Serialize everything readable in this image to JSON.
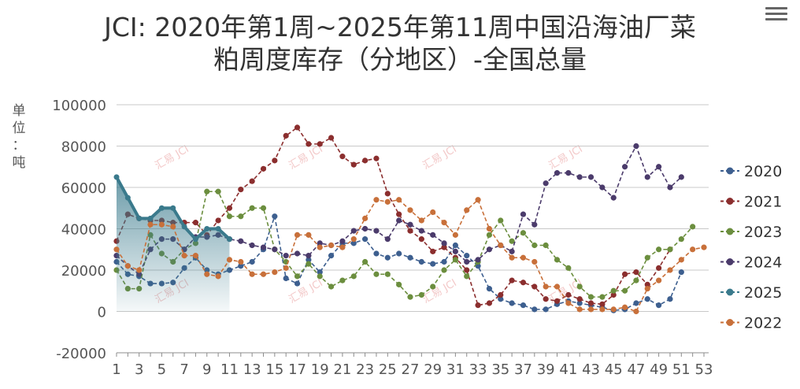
{
  "title_line1": "JCI: 2020年第1周~2025年第11周中国沿海油厂菜",
  "title_line2": "粕周度库存（分地区）-全国总量",
  "unit_label": [
    "单",
    "位",
    "：",
    "吨"
  ],
  "watermark_text": "汇易 JCI",
  "chart_data": {
    "type": "line",
    "title": "JCI: 2020年第1周~2025年第11周中国沿海油厂菜粕周度库存（分地区）-全国总量",
    "ylabel": "单位：吨",
    "xlabel": "",
    "ylim": [
      -20000,
      100000
    ],
    "yticks": [
      -20000,
      0,
      20000,
      40000,
      60000,
      80000,
      100000
    ],
    "x": [
      1,
      2,
      3,
      4,
      5,
      6,
      7,
      8,
      9,
      10,
      11,
      12,
      13,
      14,
      15,
      16,
      17,
      18,
      19,
      20,
      21,
      22,
      23,
      24,
      25,
      26,
      27,
      28,
      29,
      30,
      31,
      32,
      33,
      34,
      35,
      36,
      37,
      38,
      39,
      40,
      41,
      42,
      43,
      44,
      45,
      46,
      47,
      48,
      49,
      50,
      51,
      52,
      53
    ],
    "xticks": [
      1,
      3,
      5,
      7,
      9,
      11,
      13,
      15,
      17,
      19,
      21,
      23,
      25,
      27,
      29,
      31,
      33,
      35,
      37,
      39,
      41,
      43,
      45,
      47,
      49,
      51,
      53
    ],
    "grid": true,
    "legend_position": "right",
    "series": [
      {
        "name": "2020",
        "color": "#3d5f8f",
        "values": [
          24000,
          18000,
          17000,
          13500,
          13500,
          14000,
          21000,
          26000,
          20000,
          18000,
          20000,
          22000,
          24000,
          30000,
          46000,
          16000,
          13500,
          25000,
          19000,
          27000,
          33000,
          33000,
          35000,
          28000,
          26000,
          28000,
          26000,
          24000,
          23000,
          24000,
          32000,
          27000,
          22000,
          11000,
          6000,
          4000,
          3000,
          1000,
          1000,
          3500,
          5000,
          4000,
          3000,
          2000,
          500,
          1000,
          4000,
          6000,
          3000,
          6000,
          19000,
          null,
          null
        ]
      },
      {
        "name": "2021",
        "color": "#8b2e2e",
        "values": [
          34000,
          47000,
          45000,
          44000,
          44000,
          43000,
          43000,
          43000,
          37000,
          44000,
          50000,
          59000,
          63000,
          69000,
          73000,
          85000,
          89000,
          81000,
          81000,
          84000,
          75000,
          71000,
          73000,
          74000,
          57000,
          47000,
          39000,
          35000,
          29000,
          31000,
          26000,
          20000,
          3000,
          4000,
          8000,
          15000,
          14000,
          12000,
          6000,
          5000,
          8000,
          6000,
          4000,
          3500,
          8000,
          18000,
          19000,
          13000,
          21000,
          30000,
          null,
          null,
          null
        ]
      },
      {
        "name": "2023",
        "color": "#6b8e3e",
        "values": [
          20000,
          11000,
          11000,
          37000,
          28000,
          24000,
          30000,
          33000,
          58000,
          58000,
          46000,
          46000,
          50000,
          50000,
          30000,
          24000,
          17000,
          23000,
          17000,
          12000,
          15000,
          17000,
          24000,
          18000,
          18000,
          13000,
          7000,
          8000,
          12000,
          20000,
          25000,
          17000,
          24000,
          37000,
          44000,
          34000,
          38000,
          32000,
          32000,
          25000,
          21000,
          12000,
          7000,
          7000,
          10000,
          10000,
          15000,
          26000,
          30000,
          30000,
          35000,
          41000,
          null
        ]
      },
      {
        "name": "2024",
        "color": "#4b3b6b",
        "values": [
          27000,
          22000,
          18000,
          30000,
          35000,
          35000,
          30000,
          36000,
          36000,
          37000,
          35000,
          34000,
          32000,
          31000,
          30000,
          27000,
          28000,
          27000,
          33000,
          32000,
          34000,
          39000,
          40000,
          39000,
          35000,
          44000,
          42000,
          39000,
          37000,
          33000,
          29000,
          24000,
          25000,
          30000,
          32000,
          29000,
          47000,
          42000,
          62000,
          67000,
          67000,
          65000,
          65000,
          60000,
          55000,
          70000,
          80000,
          65000,
          70000,
          60000,
          65000,
          null,
          null
        ]
      },
      {
        "name": "2025",
        "color": "#3a7a8c",
        "values": [
          65000,
          55000,
          45000,
          45000,
          50000,
          50000,
          41000,
          35000,
          40000,
          40000,
          35000,
          null,
          null,
          null,
          null,
          null,
          null,
          null,
          null,
          null,
          null,
          null,
          null,
          null,
          null,
          null,
          null,
          null,
          null,
          null,
          null,
          null,
          null,
          null,
          null,
          null,
          null,
          null,
          null,
          null,
          null,
          null,
          null,
          null,
          null,
          null,
          null,
          null,
          null,
          null,
          null,
          null,
          null
        ]
      },
      {
        "name": "2022",
        "color": "#c8703a",
        "values": [
          30000,
          22000,
          20000,
          42000,
          42000,
          41000,
          27000,
          27000,
          18000,
          17000,
          25000,
          24000,
          18000,
          18000,
          19000,
          21000,
          37000,
          37000,
          31000,
          32000,
          31000,
          35000,
          45000,
          54000,
          53000,
          54000,
          49000,
          44000,
          48000,
          43000,
          37000,
          49000,
          54000,
          40000,
          32000,
          26000,
          26000,
          24000,
          12000,
          12000,
          4000,
          1000,
          1000,
          1000,
          1000,
          2000,
          0,
          11000,
          15000,
          20000,
          25000,
          30000,
          31000
        ]
      }
    ]
  }
}
